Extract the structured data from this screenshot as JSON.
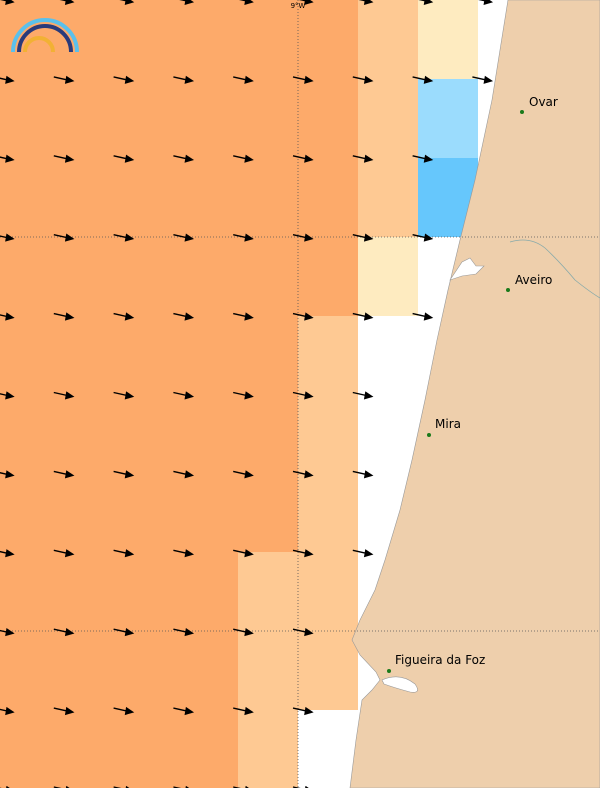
{
  "map": {
    "grid_label": "9°W",
    "places": [
      "Ovar",
      "Aveiro",
      "Mira",
      "Figueira da Foz"
    ]
  }
}
